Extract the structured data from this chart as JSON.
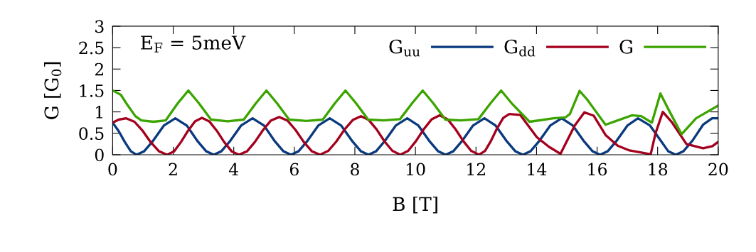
{
  "chart_data": {
    "type": "line",
    "xlabel": "B [T]",
    "ylabel": "G [G$_{0}$]",
    "annotations": [
      "E$_{F}$ = 5meV"
    ],
    "xlim": [
      0,
      20
    ],
    "xticks": [
      0,
      2,
      4,
      6,
      8,
      10,
      12,
      14,
      16,
      18,
      20
    ],
    "ylim": [
      0,
      3
    ],
    "yticks": [
      0,
      0.5,
      1,
      1.5,
      2,
      2.5,
      3
    ],
    "grid": false,
    "legend": "top right",
    "marker": "none",
    "line_style": "solid",
    "series": [
      {
        "name": "G$_{uu}$",
        "color": "#0a3a7e",
        "x": [
          0,
          0.2,
          0.4,
          0.6,
          0.79,
          1.04,
          1.34,
          1.69,
          2.07,
          2.45,
          2.79,
          3.09,
          3.34,
          3.59,
          3.89,
          4.24,
          4.62,
          5.0,
          5.34,
          5.64,
          5.89,
          6.14,
          6.44,
          6.79,
          7.17,
          7.55,
          7.9,
          8.2,
          8.45,
          8.7,
          9.0,
          9.35,
          9.73,
          10.1,
          10.45,
          10.75,
          11.0,
          11.25,
          11.55,
          11.9,
          12.28,
          12.65,
          13.0,
          13.3,
          13.55,
          13.8,
          14.1,
          14.45,
          14.83,
          15.2,
          15.55,
          15.85,
          16.1,
          16.35,
          16.65,
          17.0,
          17.35,
          17.75,
          18.1,
          18.35,
          18.6,
          18.85,
          19.15,
          19.5,
          19.8,
          20
        ],
        "values": [
          0.75,
          0.55,
          0.3,
          0.08,
          0,
          0.08,
          0.33,
          0.68,
          0.85,
          0.68,
          0.33,
          0.08,
          0,
          0.08,
          0.33,
          0.68,
          0.85,
          0.68,
          0.33,
          0.08,
          0,
          0.08,
          0.33,
          0.68,
          0.85,
          0.68,
          0.33,
          0.08,
          0,
          0.08,
          0.33,
          0.68,
          0.85,
          0.68,
          0.33,
          0.08,
          0,
          0.08,
          0.33,
          0.68,
          0.85,
          0.68,
          0.33,
          0.08,
          0,
          0.08,
          0.33,
          0.68,
          0.85,
          0.68,
          0.33,
          0.08,
          0,
          0.08,
          0.33,
          0.68,
          0.85,
          0.68,
          0.33,
          0.08,
          0,
          0.08,
          0.33,
          0.7,
          0.85,
          0.85
        ]
      },
      {
        "name": "G$_{dd}$",
        "color": "#a3001e",
        "x": [
          0,
          0.2,
          0.45,
          0.72,
          0.99,
          1.26,
          1.53,
          1.8,
          2.03,
          2.26,
          2.49,
          2.72,
          2.95,
          3.19,
          3.44,
          3.68,
          3.93,
          4.17,
          4.44,
          4.7,
          4.97,
          5.23,
          5.5,
          5.77,
          6.04,
          6.31,
          6.58,
          6.85,
          7.12,
          7.39,
          7.66,
          7.93,
          8.2,
          8.46,
          8.72,
          8.98,
          9.24,
          9.5,
          9.76,
          10.02,
          10.28,
          10.54,
          10.8,
          11.06,
          11.32,
          11.58,
          11.84,
          12.1,
          12.3,
          12.5,
          12.7,
          12.9,
          13.1,
          13.46,
          14.01,
          14.4,
          14.79,
          15.26,
          15.58,
          15.89,
          16.28,
          16.68,
          17.07,
          17.46,
          17.77,
          17.93,
          18.17,
          18.48,
          18.95,
          19.5,
          19.81,
          20
        ],
        "values": [
          0.75,
          0.82,
          0.85,
          0.77,
          0.56,
          0.29,
          0.08,
          0,
          0.08,
          0.3,
          0.56,
          0.78,
          0.86,
          0.78,
          0.56,
          0.3,
          0.08,
          0,
          0.08,
          0.3,
          0.58,
          0.8,
          0.88,
          0.8,
          0.58,
          0.3,
          0.08,
          0,
          0.09,
          0.31,
          0.59,
          0.81,
          0.9,
          0.81,
          0.59,
          0.31,
          0.09,
          0,
          0.09,
          0.32,
          0.6,
          0.83,
          0.92,
          0.83,
          0.6,
          0.32,
          0.09,
          0,
          0.09,
          0.33,
          0.62,
          0.86,
          0.95,
          0.93,
          0.41,
          0.19,
          0.02,
          0.68,
          0.99,
          0.91,
          0.46,
          0.21,
          0.1,
          0.05,
          0.01,
          0.5,
          1.0,
          0.75,
          0.25,
          0.15,
          0.2,
          0.3
        ]
      },
      {
        "name": "G",
        "color": "#3ca400",
        "x": [
          0,
          0.27,
          0.5,
          0.75,
          0.95,
          1.35,
          1.75,
          2.15,
          2.5,
          2.85,
          3.25,
          3.8,
          4.33,
          4.73,
          5.08,
          5.43,
          5.83,
          6.4,
          6.94,
          7.34,
          7.69,
          8.04,
          8.44,
          8.95,
          9.49,
          9.89,
          10.24,
          10.59,
          10.99,
          11.5,
          12.08,
          12.48,
          12.83,
          13.18,
          13.77,
          14.56,
          14.95,
          15.1,
          15.42,
          15.66,
          15.97,
          16.28,
          16.68,
          17.15,
          17.46,
          17.81,
          18.09,
          18.4,
          18.79,
          19.27,
          20
        ],
        "values": [
          1.5,
          1.4,
          1.15,
          0.9,
          0.8,
          0.77,
          0.8,
          1.2,
          1.5,
          1.2,
          0.82,
          0.78,
          0.82,
          1.2,
          1.5,
          1.2,
          0.82,
          0.79,
          0.82,
          1.2,
          1.5,
          1.2,
          0.82,
          0.8,
          0.83,
          1.2,
          1.5,
          1.2,
          0.82,
          0.8,
          0.83,
          1.2,
          1.5,
          1.2,
          0.77,
          0.85,
          0.87,
          0.95,
          1.49,
          1.3,
          1.0,
          0.7,
          0.8,
          0.92,
          0.9,
          0.75,
          1.43,
          1.0,
          0.48,
          0.85,
          1.15
        ]
      }
    ]
  }
}
